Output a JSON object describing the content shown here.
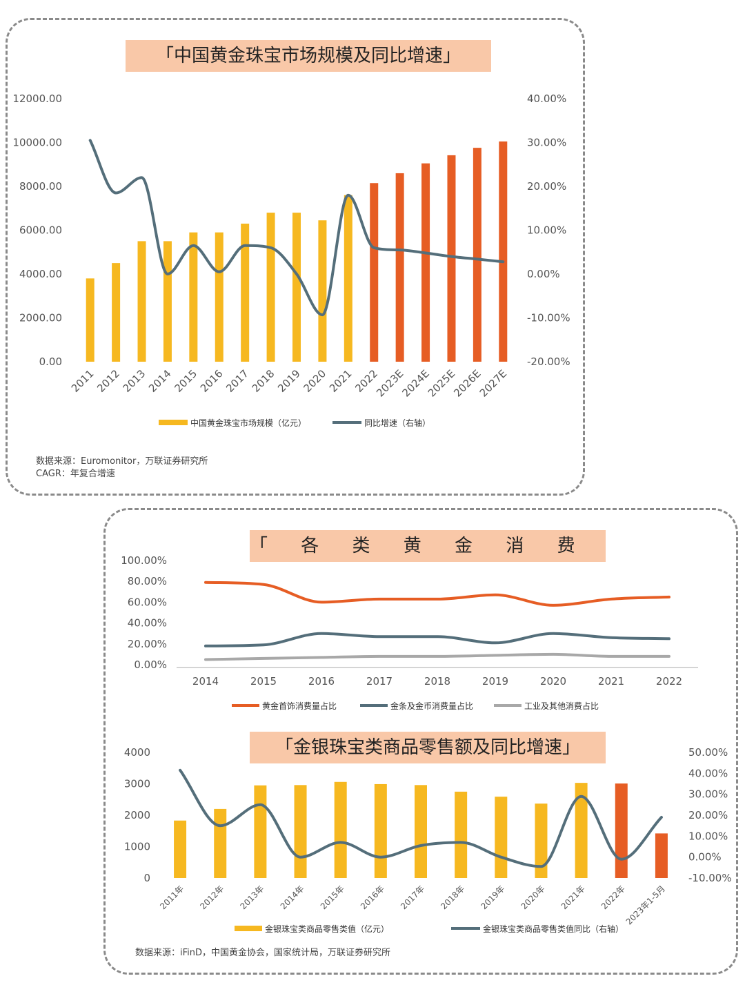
{
  "chart_data": [
    {
      "type": "bar",
      "title": "「中国黄金珠宝市场规模及同比增速」",
      "categories": [
        "2011",
        "2012",
        "2013",
        "2014",
        "2015",
        "2016",
        "2017",
        "2018",
        "2019",
        "2020",
        "2021",
        "2022",
        "2023E",
        "2024E",
        "2025E",
        "2026E",
        "2027E"
      ],
      "series": [
        {
          "name": "中国黄金珠宝市场规模（亿元）",
          "type": "bar",
          "axis": "left",
          "values": [
            3800,
            4500,
            5500,
            5500,
            5900,
            5900,
            6300,
            6800,
            6800,
            6450,
            7600,
            8150,
            8600,
            9050,
            9420,
            9760,
            10050
          ],
          "colors": [
            "#f6b820",
            "#f6b820",
            "#f6b820",
            "#f6b820",
            "#f6b820",
            "#f6b820",
            "#f6b820",
            "#f6b820",
            "#f6b820",
            "#f6b820",
            "#f6b820",
            "#e65d24",
            "#e65d24",
            "#e65d24",
            "#e65d24",
            "#e65d24",
            "#e65d24"
          ]
        },
        {
          "name": "同比增速（右轴）",
          "type": "line",
          "axis": "right",
          "color": "#546e7a",
          "values": [
            30.5,
            18.5,
            22.0,
            0.0,
            6.5,
            0.5,
            6.5,
            6.0,
            0.0,
            -9.3,
            18.0,
            6.0,
            5.5,
            4.8,
            4.0,
            3.4,
            2.8
          ]
        }
      ],
      "left_ticks": [
        "12000.00",
        "10000.00",
        "8000.00",
        "6000.00",
        "4000.00",
        "2000.00",
        "0.00"
      ],
      "right_ticks": [
        "40.00%",
        "30.00%",
        "20.00%",
        "10.00%",
        "0.00%",
        "-10.00%",
        "-20.00%"
      ],
      "ylim": [
        0,
        12000
      ],
      "y2lim": [
        -20,
        40
      ],
      "legend": "bottom"
    },
    {
      "type": "line",
      "title": "「 各 类 黄 金 消 费 情 况 」",
      "x": [
        "2014",
        "2015",
        "2016",
        "2017",
        "2018",
        "2019",
        "2020",
        "2021",
        "2022"
      ],
      "series": [
        {
          "name": "黄金首饰消费量占比",
          "color": "#e65d24",
          "values": [
            79,
            77,
            60,
            63,
            63,
            67,
            57,
            63,
            65
          ]
        },
        {
          "name": "金条及金币消费量占比",
          "color": "#546e7a",
          "values": [
            18,
            19,
            30,
            27,
            27,
            21,
            30,
            26,
            25
          ]
        },
        {
          "name": "工业及其他消费占比",
          "color": "#a8a8a8",
          "values": [
            5,
            6,
            7,
            8,
            8,
            9,
            10,
            8,
            8
          ]
        }
      ],
      "y_ticks": [
        "100.00%",
        "80.00%",
        "60.00%",
        "40.00%",
        "20.00%",
        "0.00%"
      ],
      "ylim": [
        0,
        100
      ],
      "legend": "bottom"
    },
    {
      "type": "bar",
      "title": "「金银珠宝类商品零售额及同比增速」",
      "categories": [
        "2011年",
        "2012年",
        "2013年",
        "2014年",
        "2015年",
        "2016年",
        "2017年",
        "2018年",
        "2019年",
        "2020年",
        "2021年",
        "2022年",
        "2023年1-5月"
      ],
      "series": [
        {
          "name": "金银珠宝类商品零售类值（亿元）",
          "type": "bar",
          "axis": "left",
          "values": [
            1830,
            2200,
            2950,
            2960,
            3060,
            2990,
            2960,
            2750,
            2590,
            2370,
            3030,
            3010,
            1420
          ],
          "colors": [
            "#f6b820",
            "#f6b820",
            "#f6b820",
            "#f6b820",
            "#f6b820",
            "#f6b820",
            "#f6b820",
            "#f6b820",
            "#f6b820",
            "#f6b820",
            "#f6b820",
            "#e65d24",
            "#e65d24"
          ]
        },
        {
          "name": "金银珠宝类商品零售类值同比（右轴）",
          "type": "line",
          "axis": "right",
          "color": "#546e7a",
          "values": [
            41.5,
            15.0,
            25.0,
            0.0,
            7.0,
            0.0,
            5.5,
            7.0,
            0.0,
            -4.5,
            29.0,
            -1.0,
            19.0
          ]
        }
      ],
      "left_ticks": [
        "4000",
        "3000",
        "2000",
        "1000",
        "0"
      ],
      "right_ticks": [
        "50.00%",
        "40.00%",
        "30.00%",
        "20.00%",
        "10.00%",
        "0.00%",
        "-10.00%"
      ],
      "ylim": [
        0,
        4000
      ],
      "y2lim": [
        -10,
        50
      ],
      "legend": "bottom"
    }
  ],
  "sources": {
    "p1_line1": "数据来源：Euromonitor，万联证券研究所",
    "p1_line2": "CAGR：年复合增速",
    "p2_line1": "数据来源：iFinD，中国黄金协会，国家统计局，万联证券研究所"
  }
}
